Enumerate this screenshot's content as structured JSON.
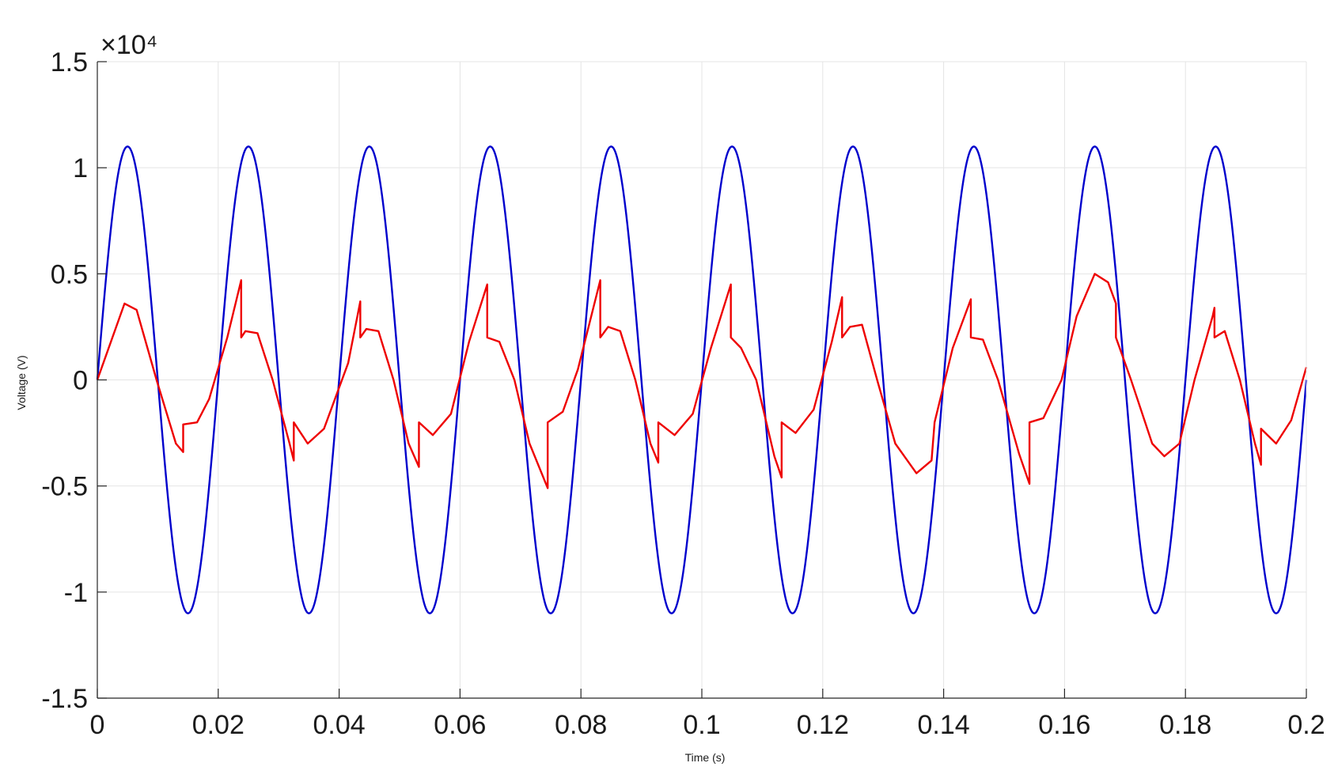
{
  "chart_data": {
    "type": "line",
    "xlabel": "Time (s)",
    "ylabel": "Voltage (V)",
    "y_exponent_label": "×10⁴",
    "xlim": [
      0,
      0.2
    ],
    "ylim": [
      -15000,
      15000
    ],
    "grid": true,
    "x_ticks": [
      0,
      0.02,
      0.04,
      0.06,
      0.08,
      0.1,
      0.12,
      0.14,
      0.16,
      0.18,
      0.2
    ],
    "x_tick_labels": [
      "0",
      "0.02",
      "0.04",
      "0.06",
      "0.08",
      "0.1",
      "0.12",
      "0.14",
      "0.16",
      "0.18",
      "0.2"
    ],
    "y_ticks": [
      -15000,
      -10000,
      -5000,
      0,
      5000,
      10000,
      15000
    ],
    "y_tick_labels": [
      "-1.5",
      "-1",
      "-0.5",
      "0",
      "0.5",
      "1",
      "1.5"
    ],
    "series": [
      {
        "color": "#0000cc",
        "kind": "sine",
        "amplitude": 11000,
        "frequency_hz": 50,
        "x_start": 0,
        "x_end": 0.2
      },
      {
        "color": "#ee0000",
        "kind": "distorted",
        "points": [
          [
            0,
            0
          ],
          [
            0.0045,
            3600
          ],
          [
            0.0065,
            3300
          ],
          [
            0.0098,
            0
          ],
          [
            0.013,
            -3000
          ],
          [
            0.0142,
            -3400
          ],
          [
            0.0142,
            -2100
          ],
          [
            0.0165,
            -2000
          ],
          [
            0.0185,
            -900
          ],
          [
            0.0215,
            2000
          ],
          [
            0.0238,
            4700
          ],
          [
            0.0238,
            2000
          ],
          [
            0.0245,
            2300
          ],
          [
            0.0265,
            2200
          ],
          [
            0.029,
            0
          ],
          [
            0.0318,
            -3000
          ],
          [
            0.0325,
            -3800
          ],
          [
            0.0325,
            -2000
          ],
          [
            0.0348,
            -3000
          ],
          [
            0.0375,
            -2300
          ],
          [
            0.0415,
            800
          ],
          [
            0.0435,
            3700
          ],
          [
            0.0435,
            2000
          ],
          [
            0.0445,
            2400
          ],
          [
            0.0465,
            2300
          ],
          [
            0.049,
            0
          ],
          [
            0.0515,
            -3000
          ],
          [
            0.0532,
            -4100
          ],
          [
            0.0532,
            -2000
          ],
          [
            0.0555,
            -2600
          ],
          [
            0.0585,
            -1600
          ],
          [
            0.0615,
            1800
          ],
          [
            0.0645,
            4500
          ],
          [
            0.0645,
            2000
          ],
          [
            0.0665,
            1800
          ],
          [
            0.069,
            0
          ],
          [
            0.0715,
            -3000
          ],
          [
            0.0745,
            -5100
          ],
          [
            0.0745,
            -2000
          ],
          [
            0.077,
            -1500
          ],
          [
            0.0795,
            500
          ],
          [
            0.0832,
            4700
          ],
          [
            0.0832,
            2000
          ],
          [
            0.0845,
            2500
          ],
          [
            0.0865,
            2300
          ],
          [
            0.089,
            0
          ],
          [
            0.0915,
            -3000
          ],
          [
            0.0928,
            -3900
          ],
          [
            0.0928,
            -2000
          ],
          [
            0.0955,
            -2600
          ],
          [
            0.0985,
            -1600
          ],
          [
            0.1015,
            1500
          ],
          [
            0.1048,
            4500
          ],
          [
            0.1048,
            2000
          ],
          [
            0.1065,
            1500
          ],
          [
            0.109,
            0
          ],
          [
            0.112,
            -3600
          ],
          [
            0.1132,
            -4600
          ],
          [
            0.1132,
            -2000
          ],
          [
            0.1155,
            -2500
          ],
          [
            0.1185,
            -1400
          ],
          [
            0.1215,
            1800
          ],
          [
            0.1232,
            3900
          ],
          [
            0.1232,
            2000
          ],
          [
            0.1245,
            2500
          ],
          [
            0.1265,
            2600
          ],
          [
            0.129,
            0
          ],
          [
            0.132,
            -3000
          ],
          [
            0.1355,
            -4400
          ],
          [
            0.138,
            -3800
          ],
          [
            0.1385,
            -2000
          ],
          [
            0.1415,
            1500
          ],
          [
            0.1445,
            3800
          ],
          [
            0.1445,
            2000
          ],
          [
            0.1465,
            1900
          ],
          [
            0.149,
            0
          ],
          [
            0.1525,
            -3500
          ],
          [
            0.1542,
            -4900
          ],
          [
            0.1542,
            -2000
          ],
          [
            0.1565,
            -1800
          ],
          [
            0.1595,
            0
          ],
          [
            0.162,
            3000
          ],
          [
            0.165,
            5000
          ],
          [
            0.1672,
            4600
          ],
          [
            0.1685,
            3600
          ],
          [
            0.1685,
            2000
          ],
          [
            0.171,
            0
          ],
          [
            0.1745,
            -3000
          ],
          [
            0.1765,
            -3600
          ],
          [
            0.179,
            -3000
          ],
          [
            0.1815,
            0
          ],
          [
            0.1845,
            3000
          ],
          [
            0.1848,
            3400
          ],
          [
            0.1848,
            2000
          ],
          [
            0.1865,
            2300
          ],
          [
            0.189,
            0
          ],
          [
            0.1915,
            -3000
          ],
          [
            0.1925,
            -4000
          ],
          [
            0.1925,
            -2300
          ],
          [
            0.195,
            -3000
          ],
          [
            0.1975,
            -1900
          ],
          [
            0.2,
            600
          ]
        ]
      }
    ]
  }
}
